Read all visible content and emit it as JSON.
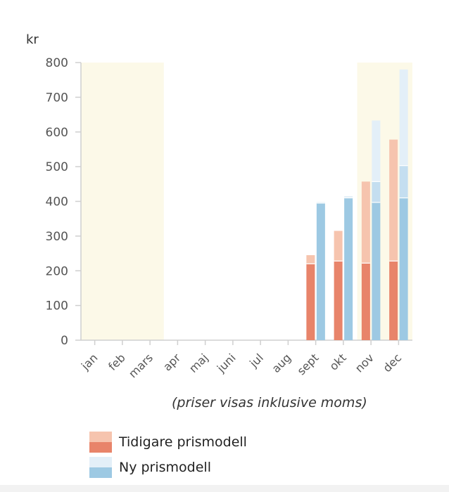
{
  "chart_data": {
    "type": "bar",
    "unit_label": "kr",
    "categories": [
      "jan",
      "feb",
      "mars",
      "apr",
      "maj",
      "juni",
      "jul",
      "aug",
      "sept",
      "okt",
      "nov",
      "dec"
    ],
    "ylim": [
      0,
      800
    ],
    "yticks": [
      0,
      100,
      200,
      300,
      400,
      500,
      600,
      700,
      800
    ],
    "highlighted_ranges": [
      [
        "jan",
        "apr"
      ],
      [
        "nov",
        "dec"
      ]
    ],
    "series": [
      {
        "name": "Tidigare prismodell",
        "base_values": [
          null,
          null,
          null,
          null,
          null,
          null,
          null,
          null,
          220,
          228,
          222,
          228
        ],
        "total_values": [
          null,
          null,
          null,
          null,
          null,
          null,
          null,
          null,
          245,
          315,
          457,
          578
        ]
      },
      {
        "name": "Ny prismodell",
        "base_values": [
          null,
          null,
          null,
          null,
          null,
          null,
          null,
          null,
          395,
          410,
          397,
          410
        ],
        "mid_values": [
          null,
          null,
          null,
          null,
          null,
          null,
          null,
          null,
          null,
          null,
          457,
          503
        ],
        "total_values": [
          null,
          null,
          null,
          null,
          null,
          null,
          null,
          null,
          398,
          415,
          633,
          780
        ]
      }
    ],
    "note": "(priser visas inklusive moms)",
    "grid": false,
    "legend_position": "bottom-left"
  },
  "colors": {
    "old_dark": "#e8846a",
    "old_light": "#f6c4ae",
    "new_dark": "#9dc9e3",
    "new_mid": "#c4def0",
    "new_light": "#e3eff8",
    "highlight": "#fcf9e8",
    "axis": "#cfcfcf"
  },
  "legend": {
    "old_label": "Tidigare prismodell",
    "new_label": "Ny prismodell"
  }
}
